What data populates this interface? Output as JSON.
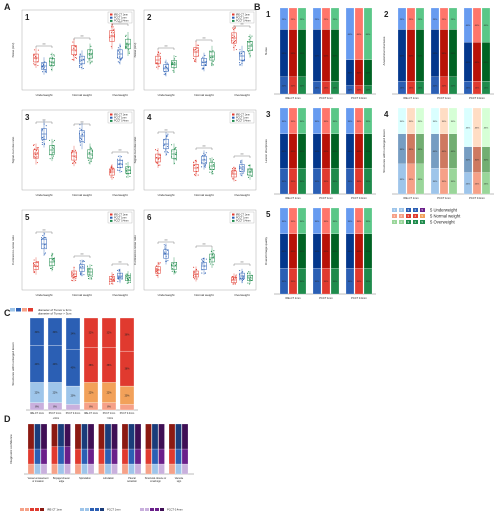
{
  "panels": {
    "A": "A",
    "B": "B",
    "C": "C",
    "D": "D"
  },
  "panel_a": {
    "legend": [
      "IRE-CT 1mm",
      "PCCT 1mm",
      "PCCT 0.4mm"
    ],
    "sub_numbers": [
      "1",
      "2",
      "3",
      "4",
      "5",
      "6"
    ],
    "groups": [
      "Underweight",
      "Normal weight",
      "Overweight"
    ],
    "ylabels": [
      "Noise (HU)",
      "Noise (HU)",
      "Signal-to-noise ratio",
      "Signal-to-noise ratio",
      "Contrast-to-noise ratio",
      "Contrast-to-noise ratio"
    ],
    "sig_label": "***"
  },
  "panel_b": {
    "sub_numbers": [
      "1",
      "2",
      "3",
      "4",
      "5"
    ],
    "ylabels": [
      "Noise",
      "Anatomical structures",
      "Lesion sharpness",
      "Structures within enlarged lesion",
      "Overall image quality"
    ],
    "xlabels": [
      "IRE-CT 1mm",
      "PCCT 1mm",
      "PCCT 0.4mm"
    ],
    "legend": {
      "weight_classes": [
        "Underweight",
        "Normal weight",
        "Overweight"
      ],
      "scores": [
        "1",
        "2",
        "3",
        "4",
        "5"
      ]
    }
  },
  "panel_c": {
    "legend_small": "diameter of Tumor ≤ 3cm",
    "legend_large": "diameter of Tumor > 3cm",
    "ylabel": "Structures within enlarged lesion",
    "xlabels": [
      "IRE-CT 1mm",
      "PCCT 1mm",
      "PCCT 0.4mm",
      "IRE-CT 1mm",
      "PCCT 1mm",
      "PCCT 0.4mm"
    ],
    "groups": [
      "≤3cm",
      ">3cm"
    ]
  },
  "panel_d": {
    "ylabel": "Diagnostic confidence",
    "categories": [
      "Vessel encasement or invasion",
      "Boyage/Uneven edge",
      "Spiculation",
      "Lobulation",
      "Pleural retraction",
      "Structural closure or small sign",
      "Vacuole sign"
    ],
    "legend": [
      "IRE-CT 1mm",
      "PCCT 1mm",
      "PCCT 0.4mm"
    ]
  },
  "chart_data": [
    {
      "type": "scatter",
      "panel": "A1",
      "categories": [
        "Underweight",
        "Normal weight",
        "Overweight"
      ],
      "series": [
        {
          "name": "IRE-CT 1mm",
          "values": [
            26,
            34,
            48
          ]
        },
        {
          "name": "PCCT 1mm",
          "values": [
            18,
            24,
            30
          ]
        },
        {
          "name": "PCCT 0.4mm",
          "values": [
            22,
            30,
            40
          ]
        }
      ]
    },
    {
      "type": "scatter",
      "panel": "A2",
      "categories": [
        "Underweight",
        "Normal weight",
        "Overweight"
      ],
      "series": [
        {
          "name": "IRE-CT 1mm",
          "values": [
            24,
            32,
            46
          ]
        },
        {
          "name": "PCCT 1mm",
          "values": [
            16,
            22,
            28
          ]
        },
        {
          "name": "PCCT 0.4mm",
          "values": [
            20,
            28,
            38
          ]
        }
      ]
    },
    {
      "type": "scatter",
      "panel": "A3",
      "categories": [
        "Underweight",
        "Normal weight",
        "Overweight"
      ],
      "series": [
        {
          "name": "IRE-CT 1mm",
          "values": [
            30,
            28,
            12
          ]
        },
        {
          "name": "PCCT 1mm",
          "values": [
            50,
            48,
            20
          ]
        },
        {
          "name": "PCCT 0.4mm",
          "values": [
            34,
            30,
            14
          ]
        }
      ]
    },
    {
      "type": "scatter",
      "panel": "A4",
      "categories": [
        "Underweight",
        "Normal weight",
        "Overweight"
      ],
      "series": [
        {
          "name": "IRE-CT 1mm",
          "values": [
            26,
            16,
            10
          ]
        },
        {
          "name": "PCCT 1mm",
          "values": [
            40,
            24,
            16
          ]
        },
        {
          "name": "PCCT 0.4mm",
          "values": [
            30,
            18,
            12
          ]
        }
      ]
    },
    {
      "type": "scatter",
      "panel": "A5",
      "categories": [
        "Underweight",
        "Normal weight",
        "Overweight"
      ],
      "series": [
        {
          "name": "IRE-CT 1mm",
          "values": [
            18,
            10,
            5
          ]
        },
        {
          "name": "PCCT 1mm",
          "values": [
            40,
            16,
            8
          ]
        },
        {
          "name": "PCCT 0.4mm",
          "values": [
            22,
            12,
            6
          ]
        }
      ]
    },
    {
      "type": "scatter",
      "panel": "A6",
      "categories": [
        "Underweight",
        "Normal weight",
        "Overweight"
      ],
      "series": [
        {
          "name": "IRE-CT 1mm",
          "values": [
            14,
            10,
            4
          ]
        },
        {
          "name": "PCCT 1mm",
          "values": [
            30,
            18,
            8
          ]
        },
        {
          "name": "PCCT 0.4mm",
          "values": [
            18,
            26,
            6
          ]
        }
      ]
    },
    {
      "type": "bar",
      "panel": "B1",
      "stacked": true,
      "categories": [
        "IRE-CT 1mm",
        "PCCT 1mm",
        "PCCT 0.4mm"
      ],
      "segments": [
        [
          20,
          55,
          25
        ],
        [
          15,
          60,
          25
        ],
        [
          10,
          30,
          60
        ]
      ]
    },
    {
      "type": "bar",
      "panel": "B2",
      "stacked": true,
      "categories": [
        "IRE-CT 1mm",
        "PCCT 1mm",
        "PCCT 0.4mm"
      ],
      "segments": [
        [
          15,
          60,
          25
        ],
        [
          20,
          55,
          25
        ],
        [
          15,
          45,
          40
        ]
      ]
    },
    {
      "type": "bar",
      "panel": "B3",
      "stacked": true,
      "categories": [
        "IRE-CT 1mm",
        "PCCT 1mm",
        "PCCT 0.4mm"
      ],
      "segments": [
        [
          30,
          40,
          30
        ],
        [
          30,
          40,
          30
        ],
        [
          30,
          40,
          30
        ]
      ]
    },
    {
      "type": "bar",
      "panel": "B4",
      "stacked": true,
      "categories": [
        "IRE-CT 1mm",
        "PCCT 1mm",
        "PCCT 0.4mm"
      ],
      "segments": [
        [
          35,
          35,
          30
        ],
        [
          30,
          40,
          30
        ],
        [
          25,
          30,
          45
        ]
      ]
    },
    {
      "type": "bar",
      "panel": "B5",
      "stacked": true,
      "categories": [
        "IRE-CT 1mm",
        "PCCT 1mm",
        "PCCT 0.4mm"
      ],
      "segments": [
        [
          30,
          40,
          30
        ],
        [
          30,
          40,
          30
        ],
        [
          30,
          40,
          30
        ]
      ]
    },
    {
      "type": "bar",
      "panel": "C",
      "stacked": true,
      "categories": [
        "IRE-CT 1mm",
        "PCCT 1mm",
        "PCCT 0.4mm",
        "IRE-CT 1mm",
        "PCCT 1mm",
        "PCCT 0.4mm"
      ],
      "segments": [
        [
          8,
          22,
          40,
          30
        ],
        [
          8,
          22,
          40,
          30
        ],
        [
          6,
          20,
          40,
          34
        ],
        [
          8,
          22,
          38,
          32
        ],
        [
          8,
          22,
          38,
          32
        ],
        [
          6,
          20,
          38,
          36
        ]
      ]
    },
    {
      "type": "bar",
      "panel": "D",
      "stacked": true,
      "categories": [
        "Vessel encasement or invasion",
        "Boyage/Uneven edge",
        "Spiculation",
        "Lobulation",
        "Pleural retraction",
        "Structural closure or small sign",
        "Vacuole sign"
      ],
      "segments": [
        [
          20,
          30,
          50
        ],
        [
          20,
          35,
          45
        ],
        [
          20,
          30,
          50
        ],
        [
          20,
          30,
          50
        ],
        [
          20,
          30,
          50
        ],
        [
          20,
          30,
          50
        ],
        [
          20,
          30,
          50
        ]
      ]
    }
  ],
  "colors": {
    "red": "#e03a2f",
    "salmon": "#f6a188",
    "blue": "#2b5fb4",
    "lightblue": "#9ec5ea",
    "green": "#1f8b4c",
    "lightgreen": "#9ad69a",
    "purple": "#6a1f8a",
    "lavender": "#c9b0dd",
    "orange": "#f2a15a"
  }
}
